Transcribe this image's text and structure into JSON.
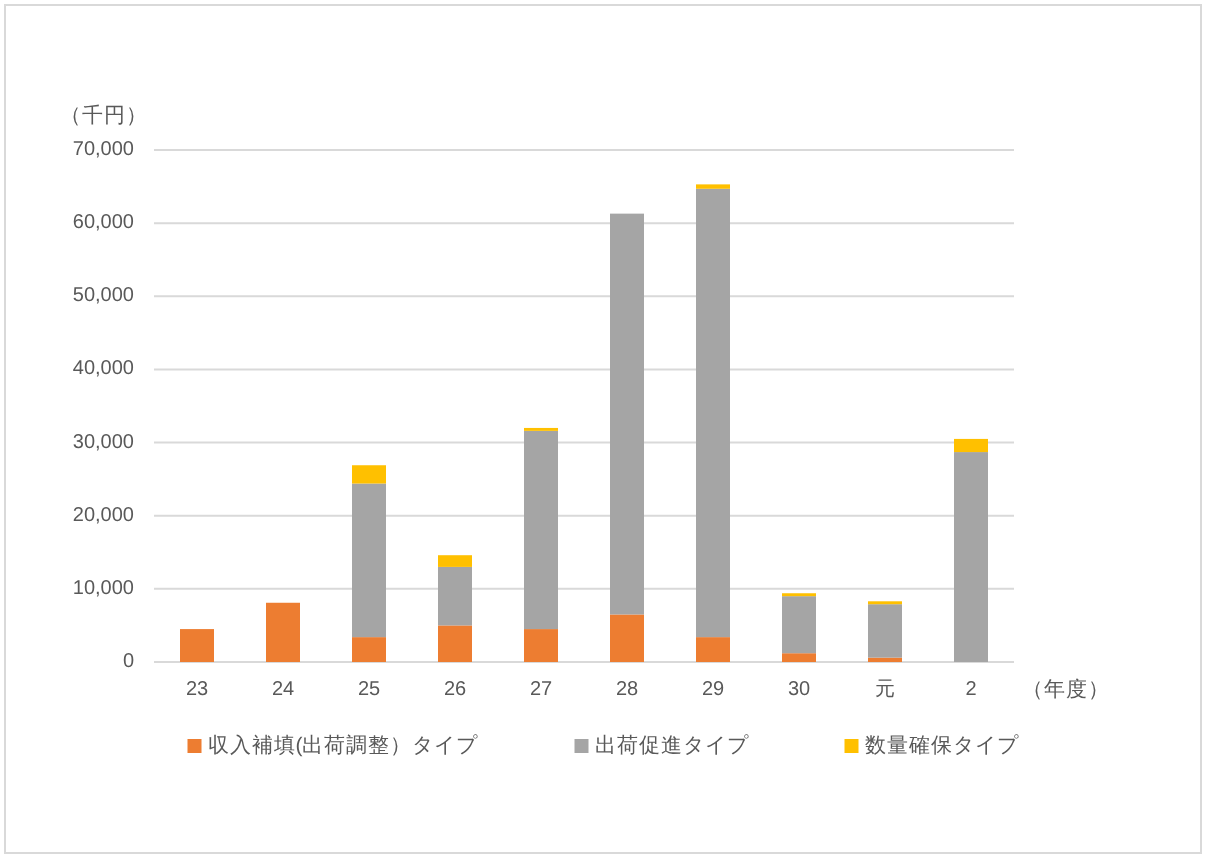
{
  "chart_data": {
    "type": "bar",
    "stacked": true,
    "ylabel": "（千円）",
    "xlabel": "（年度）",
    "categories": [
      "23",
      "24",
      "25",
      "26",
      "27",
      "28",
      "29",
      "30",
      "元",
      "2"
    ],
    "series": [
      {
        "name": "収入補填(出荷調整）タイプ",
        "color": "#ed7d31",
        "values": [
          4500,
          8100,
          3400,
          5000,
          4500,
          6500,
          3400,
          1200,
          600,
          0
        ]
      },
      {
        "name": "出荷促進タイプ",
        "color": "#a5a5a5",
        "values": [
          0,
          0,
          21000,
          8000,
          27100,
          54800,
          61300,
          7800,
          7300,
          28700
        ]
      },
      {
        "name": "数量確保タイプ",
        "color": "#ffc000",
        "values": [
          0,
          0,
          2500,
          1600,
          400,
          0,
          600,
          400,
          400,
          1800
        ]
      }
    ],
    "ylim": [
      0,
      70000
    ],
    "yticks": [
      0,
      {
        "value": 10000,
        "label": "10,000"
      },
      {
        "value": 20000,
        "label": "20,000"
      },
      {
        "value": 30000,
        "label": "30,000"
      },
      {
        "value": 40000,
        "label": "40,000"
      },
      {
        "value": 50000,
        "label": "50,000"
      },
      {
        "value": 60000,
        "label": "60,000"
      },
      {
        "value": 70000,
        "label": "70,000"
      }
    ],
    "grid": "y",
    "legend": "bottom"
  }
}
